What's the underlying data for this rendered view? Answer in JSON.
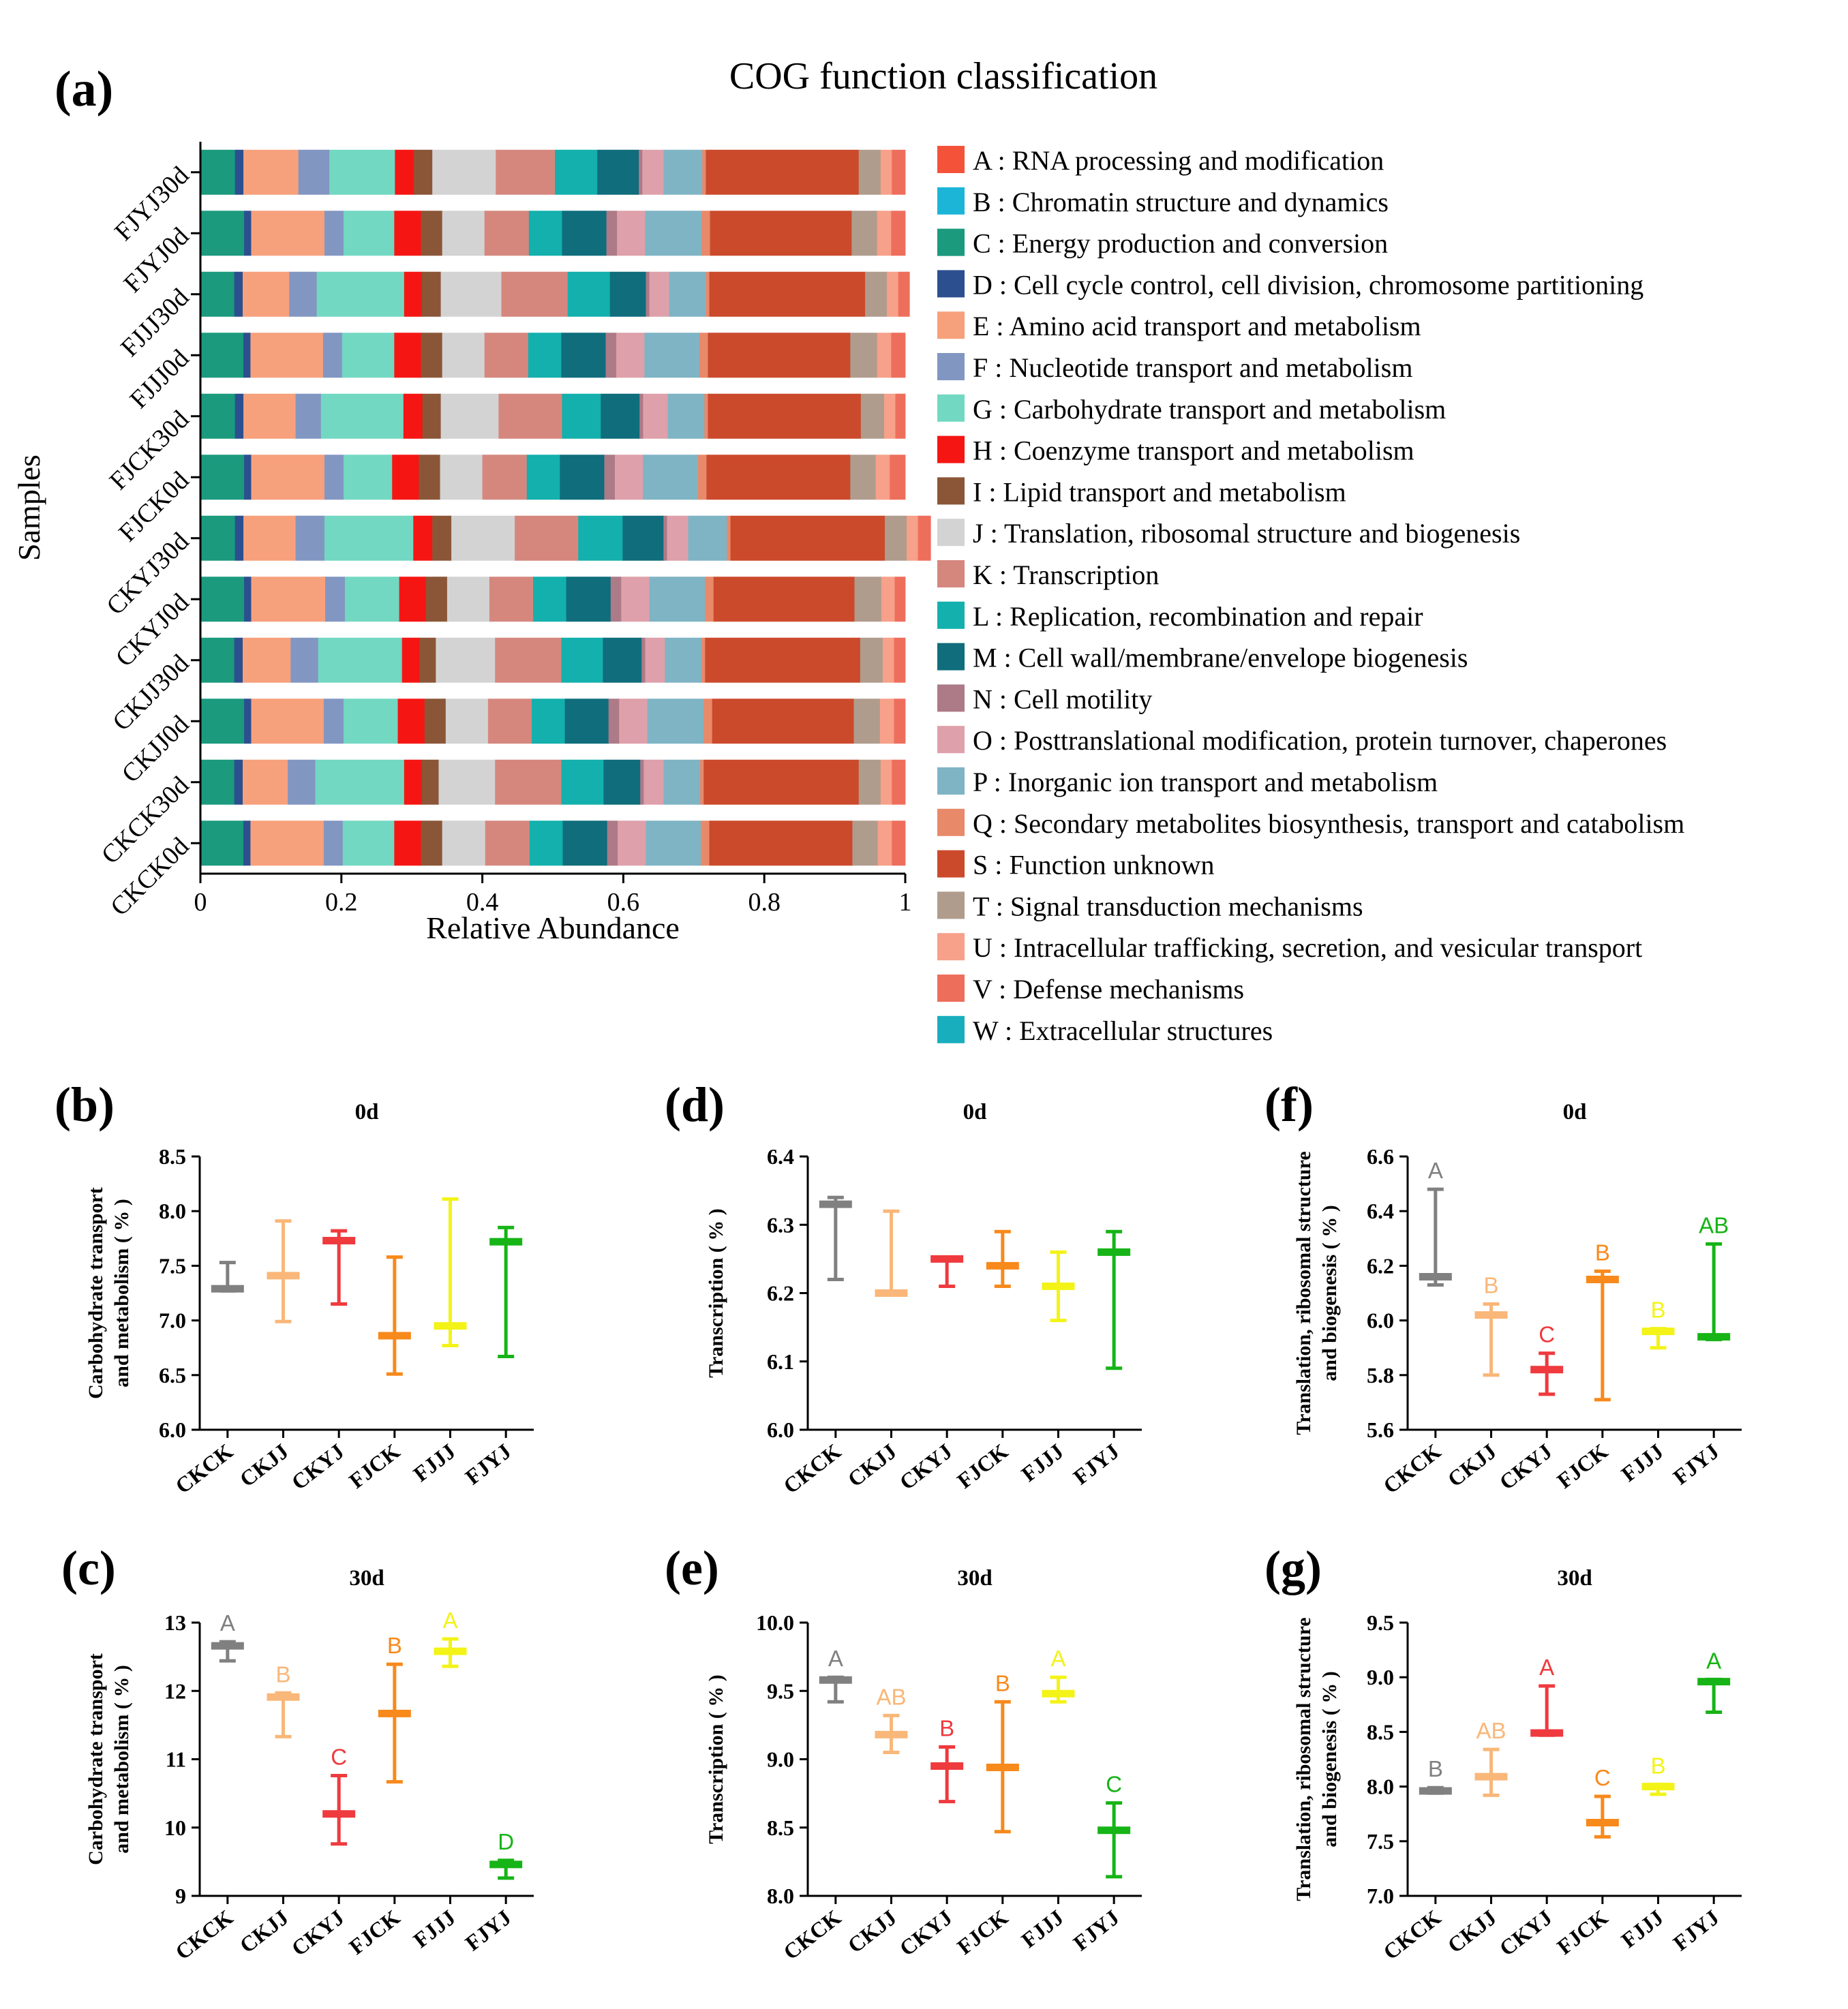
{
  "figure": {
    "panel_a_letter": "(a)",
    "panel_b_letter": "(b)",
    "panel_c_letter": "(c)",
    "panel_d_letter": "(d)",
    "panel_e_letter": "(e)",
    "panel_f_letter": "(f)",
    "panel_g_letter": "(g)"
  },
  "chart_data": [
    {
      "id": "a",
      "type": "bar",
      "stacked": true,
      "orientation": "horizontal",
      "title": "COG function classification",
      "xlabel": "Relative Abundance",
      "ylabel": "Samples",
      "xlim": [
        0,
        1
      ],
      "xticks": [
        "0",
        "0.2",
        "0.4",
        "0.6",
        "0.8",
        "1"
      ],
      "legend_position": "right",
      "categories": [
        "CKCK0d",
        "CKCK30d",
        "CKJJ0d",
        "CKJJ30d",
        "CKYJ0d",
        "CKYJ30d",
        "FJCK0d",
        "FJCK30d",
        "FJJJ0d",
        "FJJJ30d",
        "FJYJ0d",
        "FJYJ30d"
      ],
      "series": [
        {
          "code": "A",
          "name": "A : RNA processing and modification",
          "color": "#f4533a",
          "values": [
            0,
            0,
            0,
            0,
            0,
            0,
            0,
            0,
            0,
            0,
            0,
            0
          ]
        },
        {
          "code": "B",
          "name": "B : Chromatin structure and dynamics",
          "color": "#1cb5d8",
          "values": [
            0,
            0,
            0,
            0,
            0,
            0,
            0,
            0,
            0,
            0,
            0,
            0
          ]
        },
        {
          "code": "C",
          "name": "C : Energy production and conversion",
          "color": "#1b9a7e",
          "values": [
            0.061,
            0.048,
            0.062,
            0.048,
            0.062,
            0.049,
            0.062,
            0.049,
            0.061,
            0.048,
            0.062,
            0.049
          ]
        },
        {
          "code": "D",
          "name": "D : Cell cycle control, cell division, chromosome partitioning",
          "color": "#2c4f8f",
          "values": [
            0.01,
            0.012,
            0.01,
            0.012,
            0.01,
            0.012,
            0.01,
            0.012,
            0.01,
            0.012,
            0.01,
            0.012
          ]
        },
        {
          "code": "E",
          "name": "E : Amino acid transport and metabolism",
          "color": "#f7a07c",
          "values": [
            0.104,
            0.064,
            0.103,
            0.068,
            0.105,
            0.074,
            0.104,
            0.074,
            0.103,
            0.066,
            0.104,
            0.078
          ]
        },
        {
          "code": "F",
          "name": "F : Nucleotide transport and metabolism",
          "color": "#8296c2",
          "values": [
            0.027,
            0.039,
            0.028,
            0.039,
            0.028,
            0.041,
            0.027,
            0.036,
            0.027,
            0.039,
            0.027,
            0.044
          ]
        },
        {
          "code": "G",
          "name": "G : Carbohydrate transport and metabolism",
          "color": "#72d8c2",
          "values": [
            0.073,
            0.126,
            0.077,
            0.119,
            0.077,
            0.126,
            0.069,
            0.117,
            0.074,
            0.124,
            0.072,
            0.093
          ]
        },
        {
          "code": "H",
          "name": "H : Coenzyme transport and metabolism",
          "color": "#f51614",
          "values": [
            0.038,
            0.025,
            0.038,
            0.025,
            0.038,
            0.027,
            0.038,
            0.027,
            0.038,
            0.025,
            0.038,
            0.027
          ]
        },
        {
          "code": "I",
          "name": "I : Lipid transport and metabolism",
          "color": "#8b5638",
          "values": [
            0.03,
            0.024,
            0.03,
            0.023,
            0.03,
            0.027,
            0.03,
            0.026,
            0.03,
            0.027,
            0.03,
            0.026
          ]
        },
        {
          "code": "J",
          "name": "J : Translation, ribosomal structure and biogenesis",
          "color": "#d3d3d3",
          "values": [
            0.061,
            0.08,
            0.06,
            0.084,
            0.06,
            0.09,
            0.06,
            0.082,
            0.06,
            0.086,
            0.06,
            0.09
          ]
        },
        {
          "code": "K",
          "name": "K : Transcription",
          "color": "#d5877e",
          "values": [
            0.063,
            0.094,
            0.062,
            0.094,
            0.062,
            0.09,
            0.063,
            0.09,
            0.062,
            0.094,
            0.063,
            0.084
          ]
        },
        {
          "code": "L",
          "name": "L : Replication, recombination and repair",
          "color": "#13b0ad",
          "values": [
            0.047,
            0.06,
            0.047,
            0.059,
            0.047,
            0.063,
            0.047,
            0.055,
            0.047,
            0.06,
            0.047,
            0.06
          ]
        },
        {
          "code": "M",
          "name": "M : Cell wall/membrane/envelope biogenesis",
          "color": "#0f6d7c",
          "values": [
            0.063,
            0.052,
            0.062,
            0.055,
            0.063,
            0.058,
            0.063,
            0.055,
            0.063,
            0.051,
            0.063,
            0.059
          ]
        },
        {
          "code": "N",
          "name": "N : Cell motility",
          "color": "#ad7a88",
          "values": [
            0.015,
            0.005,
            0.015,
            0.005,
            0.015,
            0.005,
            0.015,
            0.005,
            0.015,
            0.005,
            0.015,
            0.005
          ]
        },
        {
          "code": "O",
          "name": "O : Posttranslational modification, protein turnover, chaperones",
          "color": "#dea0aa",
          "values": [
            0.04,
            0.028,
            0.04,
            0.028,
            0.04,
            0.03,
            0.04,
            0.035,
            0.04,
            0.028,
            0.04,
            0.03
          ]
        },
        {
          "code": "P",
          "name": "P : Inorganic ion transport and metabolism",
          "color": "#7fb4c4",
          "values": [
            0.078,
            0.052,
            0.08,
            0.052,
            0.079,
            0.055,
            0.078,
            0.052,
            0.078,
            0.052,
            0.08,
            0.055
          ]
        },
        {
          "code": "Q",
          "name": "Q : Secondary metabolites biosynthesis, transport and catabolism",
          "color": "#e8896a",
          "values": [
            0.012,
            0.005,
            0.012,
            0.005,
            0.012,
            0.005,
            0.012,
            0.005,
            0.012,
            0.005,
            0.012,
            0.005
          ]
        },
        {
          "code": "S",
          "name": "S : Function unknown",
          "color": "#cb4a2c",
          "values": [
            0.203,
            0.22,
            0.201,
            0.22,
            0.2,
            0.219,
            0.204,
            0.217,
            0.202,
            0.221,
            0.201,
            0.217
          ]
        },
        {
          "code": "T",
          "name": "T : Signal transduction mechanisms",
          "color": "#b09c8d",
          "values": [
            0.036,
            0.031,
            0.037,
            0.032,
            0.038,
            0.031,
            0.036,
            0.033,
            0.038,
            0.031,
            0.036,
            0.031
          ]
        },
        {
          "code": "U",
          "name": "U : Intracellular trafficking, secretion, and vesicular transport",
          "color": "#f7a08a",
          "values": [
            0.02,
            0.016,
            0.02,
            0.016,
            0.019,
            0.016,
            0.02,
            0.016,
            0.02,
            0.016,
            0.02,
            0.016
          ]
        },
        {
          "code": "V",
          "name": "V : Defense mechanisms",
          "color": "#ee6e5c",
          "values": [
            0.019,
            0.019,
            0.016,
            0.016,
            0.015,
            0.018,
            0.022,
            0.014,
            0.02,
            0.016,
            0.02,
            0.019
          ]
        },
        {
          "code": "W",
          "name": "W : Extracellular structures",
          "color": "#19aebd",
          "values": [
            0,
            0,
            0,
            0,
            0,
            0,
            0,
            0,
            0,
            0,
            0,
            0
          ]
        }
      ]
    },
    {
      "id": "b",
      "type": "bar",
      "style": "line_with_error_bars",
      "title": "0d",
      "ylabel": "Carbohydrate transport\nand metabolism ( % )",
      "ylim": [
        6.0,
        8.5
      ],
      "yticks": [
        "6.0",
        "6.5",
        "7.0",
        "7.5",
        "8.0",
        "8.5"
      ],
      "categories": [
        "CKCK",
        "CKJJ",
        "CKYJ",
        "FJCK",
        "FJJJ",
        "FJYJ"
      ],
      "colors": [
        "#808080",
        "#f9b779",
        "#ef3a3e",
        "#f8891b",
        "#f3f317",
        "#16b416"
      ],
      "values": [
        7.29,
        7.41,
        7.73,
        6.86,
        6.95,
        7.72
      ],
      "low": [
        7.27,
        6.99,
        7.15,
        6.51,
        6.77,
        6.67
      ],
      "high": [
        7.53,
        7.91,
        7.82,
        7.58,
        8.11,
        7.85
      ],
      "letters": [
        "",
        "",
        "",
        "",
        "",
        ""
      ]
    },
    {
      "id": "c",
      "type": "bar",
      "style": "line_with_error_bars",
      "title": "30d",
      "ylabel": "Carbohydrate transport\nand metabolism ( % )",
      "ylim": [
        9,
        13
      ],
      "yticks": [
        "9",
        "10",
        "11",
        "12",
        "13"
      ],
      "categories": [
        "CKCK",
        "CKJJ",
        "CKYJ",
        "FJCK",
        "FJJJ",
        "FJYJ"
      ],
      "colors": [
        "#808080",
        "#f9b779",
        "#ef3a3e",
        "#f8891b",
        "#f3f317",
        "#16b416"
      ],
      "values": [
        12.66,
        11.91,
        10.2,
        11.67,
        12.58,
        9.46
      ],
      "low": [
        12.44,
        11.33,
        9.76,
        10.67,
        12.36,
        9.26
      ],
      "high": [
        12.72,
        11.97,
        10.76,
        12.39,
        12.76,
        9.52
      ],
      "letters": [
        "A",
        "B",
        "C",
        "B",
        "A",
        "D"
      ]
    },
    {
      "id": "d",
      "type": "bar",
      "style": "line_with_error_bars",
      "title": "0d",
      "ylabel": "Transcription ( % )",
      "ylim": [
        6.0,
        6.4
      ],
      "yticks": [
        "6.0",
        "6.1",
        "6.2",
        "6.3",
        "6.4"
      ],
      "categories": [
        "CKCK",
        "CKJJ",
        "CKYJ",
        "FJCK",
        "FJJJ",
        "FJYJ"
      ],
      "colors": [
        "#808080",
        "#f9b779",
        "#ef3a3e",
        "#f8891b",
        "#f3f317",
        "#16b416"
      ],
      "values": [
        6.33,
        6.2,
        6.25,
        6.24,
        6.21,
        6.26
      ],
      "low": [
        6.22,
        6.2,
        6.21,
        6.21,
        6.16,
        6.09
      ],
      "high": [
        6.34,
        6.32,
        6.25,
        6.29,
        6.26,
        6.29
      ],
      "letters": [
        "",
        "",
        "",
        "",
        "",
        ""
      ]
    },
    {
      "id": "e",
      "type": "bar",
      "style": "line_with_error_bars",
      "title": "30d",
      "ylabel": "Transcription ( % )",
      "ylim": [
        8.0,
        10.0
      ],
      "yticks": [
        "8.0",
        "8.5",
        "9.0",
        "9.5",
        "10.0"
      ],
      "categories": [
        "CKCK",
        "CKJJ",
        "CKYJ",
        "FJCK",
        "FJJJ",
        "FJYJ"
      ],
      "colors": [
        "#808080",
        "#f9b779",
        "#ef3a3e",
        "#f8891b",
        "#f3f317",
        "#16b416"
      ],
      "values": [
        9.58,
        9.18,
        8.95,
        8.94,
        9.48,
        8.48
      ],
      "low": [
        9.42,
        9.05,
        8.69,
        8.47,
        9.42,
        8.14
      ],
      "high": [
        9.6,
        9.32,
        9.09,
        9.42,
        9.6,
        8.68
      ],
      "letters": [
        "A",
        "AB",
        "B",
        "B",
        "A",
        "C"
      ]
    },
    {
      "id": "f",
      "type": "bar",
      "style": "line_with_error_bars",
      "title": "0d",
      "ylabel": "Translation, ribosomal structure\nand biogenesis ( % )",
      "ylim": [
        5.6,
        6.6
      ],
      "yticks": [
        "5.6",
        "5.8",
        "6.0",
        "6.2",
        "6.4",
        "6.6"
      ],
      "categories": [
        "CKCK",
        "CKJJ",
        "CKYJ",
        "FJCK",
        "FJJJ",
        "FJYJ"
      ],
      "colors": [
        "#808080",
        "#f9b779",
        "#ef3a3e",
        "#f8891b",
        "#f3f317",
        "#16b416"
      ],
      "values": [
        6.16,
        6.02,
        5.82,
        6.15,
        5.96,
        5.94
      ],
      "low": [
        6.13,
        5.8,
        5.73,
        5.71,
        5.9,
        5.93
      ],
      "high": [
        6.48,
        6.06,
        5.88,
        6.18,
        5.97,
        6.28
      ],
      "letters": [
        "A",
        "B",
        "C",
        "B",
        "B",
        "AB"
      ]
    },
    {
      "id": "g",
      "type": "bar",
      "style": "line_with_error_bars",
      "title": "30d",
      "ylabel": "Translation, ribosomal structure\nand biogenesis ( % )",
      "ylim": [
        7.0,
        9.5
      ],
      "yticks": [
        "7.0",
        "7.5",
        "8.0",
        "8.5",
        "9.0",
        "9.5"
      ],
      "categories": [
        "CKCK",
        "CKJJ",
        "CKYJ",
        "FJCK",
        "FJJJ",
        "FJYJ"
      ],
      "colors": [
        "#808080",
        "#f9b779",
        "#ef3a3e",
        "#f8891b",
        "#f3f317",
        "#16b416"
      ],
      "values": [
        7.96,
        8.09,
        8.49,
        7.67,
        8.0,
        8.96
      ],
      "low": [
        7.94,
        7.92,
        8.47,
        7.54,
        7.93,
        8.68
      ],
      "high": [
        7.99,
        8.34,
        8.92,
        7.91,
        8.02,
        8.98
      ],
      "letters": [
        "B",
        "AB",
        "A",
        "C",
        "B",
        "A"
      ]
    }
  ]
}
